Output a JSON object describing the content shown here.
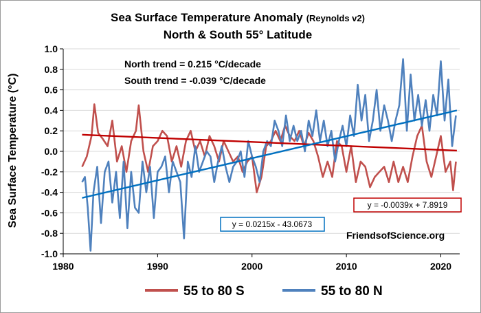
{
  "chart_data": {
    "type": "line",
    "title_main": "Sea Surface Temperature Anomaly",
    "title_suffix": "(Reynolds v2)",
    "subtitle": "North & South 55° Latitude",
    "xlabel": "",
    "ylabel": "Sea Surface Temperature (°C)",
    "xlim": [
      1980,
      2022
    ],
    "ylim": [
      -1.0,
      1.0
    ],
    "x_ticks": [
      1980,
      1990,
      2000,
      2010,
      2020
    ],
    "x_tick_labels": [
      "1980",
      "1990",
      "2000",
      "2010",
      "2020"
    ],
    "y_ticks": [
      -1.0,
      -0.8,
      -0.6,
      -0.4,
      -0.2,
      0.0,
      0.2,
      0.4,
      0.6,
      0.8,
      1.0
    ],
    "y_tick_labels": [
      "-1.0",
      "-0.8",
      "-0.6",
      "-0.4",
      "-0.2",
      "0.0",
      "0.2",
      "0.4",
      "0.6",
      "0.8",
      "1.0"
    ],
    "grid": "horizontal",
    "legend_position": "bottom",
    "annotations": {
      "north_trend": "North trend = 0.215 °C/decade",
      "south_trend": "South trend = -0.039 °C/decade",
      "credit": "FriendsofScience.org"
    },
    "series": [
      {
        "name": "55 to 80 S",
        "color": "#c0504d",
        "x": [
          1982.0,
          1982.5,
          1983.0,
          1983.3,
          1983.7,
          1984.2,
          1984.7,
          1985.2,
          1985.7,
          1986.2,
          1986.7,
          1987.2,
          1987.7,
          1988.0,
          1988.5,
          1989.0,
          1989.5,
          1990.0,
          1990.5,
          1991.0,
          1991.5,
          1992.0,
          1992.5,
          1993.0,
          1993.5,
          1994.0,
          1994.5,
          1995.0,
          1995.5,
          1996.0,
          1996.5,
          1997.0,
          1997.5,
          1998.0,
          1998.5,
          1999.0,
          1999.5,
          2000.0,
          2000.5,
          2001.0,
          2001.5,
          2002.0,
          2002.5,
          2003.0,
          2003.5,
          2004.0,
          2004.5,
          2005.0,
          2005.5,
          2006.0,
          2006.5,
          2007.0,
          2007.5,
          2008.0,
          2008.5,
          2009.0,
          2009.5,
          2010.0,
          2010.5,
          2011.0,
          2011.5,
          2012.0,
          2012.5,
          2013.0,
          2013.5,
          2014.0,
          2014.5,
          2015.0,
          2015.5,
          2016.0,
          2016.5,
          2017.0,
          2017.5,
          2018.0,
          2018.5,
          2019.0,
          2019.5,
          2020.0,
          2020.5,
          2021.0,
          2021.3,
          2021.6
        ],
        "values": [
          -0.15,
          -0.05,
          0.15,
          0.46,
          0.18,
          0.12,
          0.05,
          0.3,
          -0.1,
          0.05,
          -0.2,
          0.1,
          0.2,
          0.45,
          0.0,
          -0.2,
          0.05,
          0.1,
          0.2,
          0.15,
          -0.1,
          0.05,
          -0.15,
          0.1,
          0.2,
          0.0,
          0.1,
          -0.05,
          0.15,
          0.05,
          -0.1,
          0.1,
          0.0,
          -0.1,
          -0.05,
          -0.2,
          -0.1,
          -0.05,
          -0.4,
          -0.25,
          0.05,
          0.1,
          0.2,
          0.1,
          0.25,
          0.15,
          0.1,
          0.2,
          0.05,
          0.18,
          0.1,
          -0.05,
          -0.25,
          -0.1,
          -0.25,
          0.1,
          0.05,
          -0.2,
          0.05,
          -0.3,
          -0.1,
          -0.15,
          -0.35,
          -0.25,
          -0.2,
          -0.15,
          -0.3,
          -0.1,
          -0.3,
          -0.15,
          -0.3,
          -0.05,
          0.15,
          0.25,
          -0.1,
          -0.25,
          -0.05,
          0.15,
          -0.2,
          -0.1,
          -0.38,
          -0.1
        ]
      },
      {
        "name": "55 to 80 N",
        "color": "#4f81bd",
        "x": [
          1982.0,
          1982.3,
          1982.6,
          1982.9,
          1983.2,
          1983.6,
          1984.0,
          1984.4,
          1984.8,
          1985.2,
          1985.6,
          1986.0,
          1986.4,
          1986.8,
          1987.2,
          1987.6,
          1988.0,
          1988.4,
          1988.8,
          1989.2,
          1989.6,
          1990.0,
          1990.4,
          1990.8,
          1991.2,
          1991.6,
          1992.0,
          1992.4,
          1992.8,
          1993.2,
          1993.6,
          1994.0,
          1994.4,
          1994.8,
          1995.2,
          1995.6,
          1996.0,
          1996.4,
          1996.8,
          1997.2,
          1997.6,
          1998.0,
          1998.4,
          1998.8,
          1999.2,
          1999.6,
          2000.0,
          2000.4,
          2000.8,
          2001.2,
          2001.6,
          2002.0,
          2002.4,
          2002.8,
          2003.2,
          2003.6,
          2004.0,
          2004.4,
          2004.8,
          2005.2,
          2005.6,
          2006.0,
          2006.4,
          2006.8,
          2007.2,
          2007.6,
          2008.0,
          2008.4,
          2008.8,
          2009.2,
          2009.6,
          2010.0,
          2010.4,
          2010.8,
          2011.2,
          2011.6,
          2012.0,
          2012.4,
          2012.8,
          2013.2,
          2013.6,
          2014.0,
          2014.4,
          2014.8,
          2015.2,
          2015.6,
          2016.0,
          2016.4,
          2016.8,
          2017.2,
          2017.6,
          2018.0,
          2018.4,
          2018.8,
          2019.2,
          2019.6,
          2020.0,
          2020.4,
          2020.8,
          2021.2,
          2021.6
        ],
        "values": [
          -0.3,
          -0.25,
          -0.55,
          -0.97,
          -0.4,
          -0.15,
          -0.7,
          -0.2,
          -0.1,
          -0.5,
          -0.2,
          -0.65,
          -0.1,
          -0.75,
          -0.2,
          -0.55,
          -0.6,
          -0.1,
          -0.4,
          -0.15,
          -0.65,
          -0.2,
          -0.15,
          -0.05,
          -0.4,
          -0.1,
          -0.2,
          -0.3,
          -0.85,
          -0.1,
          -0.25,
          0.05,
          -0.2,
          -0.1,
          0.0,
          -0.05,
          -0.3,
          -0.1,
          0.05,
          -0.15,
          -0.3,
          -0.15,
          -0.1,
          0.0,
          -0.25,
          0.1,
          -0.05,
          -0.15,
          -0.3,
          0.0,
          0.1,
          0.05,
          0.3,
          0.2,
          0.05,
          0.35,
          0.1,
          0.25,
          0.1,
          0.2,
          0.0,
          0.3,
          0.15,
          0.4,
          0.1,
          0.3,
          0.05,
          0.2,
          -0.1,
          0.1,
          0.25,
          0.05,
          0.35,
          0.15,
          0.65,
          0.3,
          0.55,
          0.1,
          0.3,
          0.6,
          0.2,
          0.45,
          0.3,
          0.1,
          0.3,
          0.45,
          0.9,
          0.2,
          0.75,
          0.3,
          0.55,
          0.25,
          0.5,
          0.2,
          0.55,
          0.35,
          0.88,
          0.3,
          0.7,
          0.05,
          0.35
        ]
      }
    ],
    "trendlines": [
      {
        "series": "55 to 80 S",
        "equation": "y = -0.0039x + 7.8919",
        "slope": -0.0039,
        "intercept": 7.8919,
        "color": "#c00000",
        "x_range": [
          1982,
          2021.7
        ]
      },
      {
        "series": "55 to 80 N",
        "equation": "y = 0.0215x - 43.0673",
        "slope": 0.0215,
        "intercept": -43.0673,
        "color": "#0070c0",
        "x_range": [
          1982,
          2021.7
        ]
      }
    ],
    "legend": [
      {
        "label": "55 to 80 S",
        "color": "#c0504d"
      },
      {
        "label": "55 to 80 N",
        "color": "#4f81bd"
      }
    ]
  }
}
